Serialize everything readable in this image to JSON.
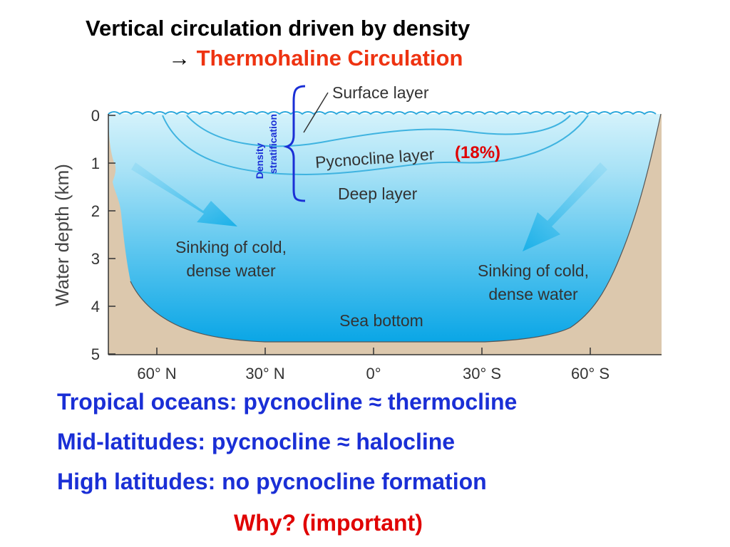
{
  "title": "Vertical circulation driven by density",
  "subtitle": {
    "arrow": "→",
    "text": "Thermohaline Circulation",
    "color": "#ee3311"
  },
  "diagram": {
    "y_axis_label": "Water depth (km)",
    "depth_ticks": [
      "0",
      "1",
      "2",
      "3",
      "4",
      "5"
    ],
    "latitude_labels": [
      "60° N",
      "30° N",
      "0°",
      "30° S",
      "60° S"
    ],
    "layers": {
      "surface": "Surface layer",
      "pycnocline": "Pycnocline layer",
      "pycnocline_percent": "(18%)",
      "deep": "Deep layer"
    },
    "bracket_label_line1": "Density",
    "bracket_label_line2": "stratification",
    "sinking_left_line1": "Sinking of cold,",
    "sinking_left_line2": "dense water",
    "sinking_right_line1": "Sinking of cold,",
    "sinking_right_line2": "dense water",
    "sea_bottom": "Sea bottom",
    "colors": {
      "water_surface": "#d4f2fb",
      "water_deep": "#0aa6e6",
      "land": "#dcc8ad",
      "arrow": "#29b6ea",
      "bracket": "#1a2fd6",
      "percent": "#e00000"
    }
  },
  "statements": [
    "Tropical oceans: pycnocline ≈ thermocline",
    "Mid-latitudes: pycnocline ≈ halocline",
    "High latitudes: no pycnocline formation"
  ],
  "question": "Why? (important)"
}
